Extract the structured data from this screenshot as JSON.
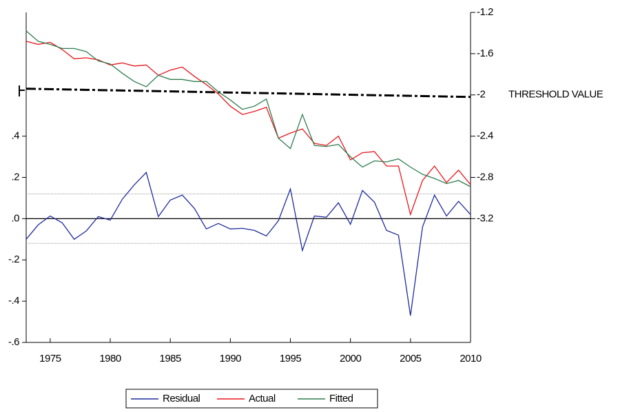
{
  "chart_data": {
    "type": "line",
    "x": [
      1973,
      1974,
      1975,
      1976,
      1977,
      1978,
      1979,
      1980,
      1981,
      1982,
      1983,
      1984,
      1985,
      1986,
      1987,
      1988,
      1989,
      1990,
      1991,
      1992,
      1993,
      1994,
      1995,
      1996,
      1997,
      1998,
      1999,
      2000,
      2001,
      2002,
      2003,
      2004,
      2005,
      2006,
      2007,
      2008,
      2009,
      2010
    ],
    "xlim": [
      1973,
      2010
    ],
    "xticks": [
      1975,
      1980,
      1985,
      1990,
      1995,
      2000,
      2005,
      2010
    ],
    "ylim": [
      -0.6,
      1.0
    ],
    "yticks": [
      {
        "value": -0.6,
        "label": "-.6"
      },
      {
        "value": -0.4,
        "label": "-.4"
      },
      {
        "value": -0.2,
        "label": "-.2"
      },
      {
        "value": 0,
        "label": ".0"
      },
      {
        "value": 0.2,
        "label": ".2"
      },
      {
        "value": 0.4,
        "label": ".4"
      }
    ],
    "y2lim": [
      -4.4,
      -1.2
    ],
    "y2ticks": [
      -3.2,
      -2.8,
      -2.4,
      -2.0,
      -1.6,
      -1.2
    ],
    "zero_line": true,
    "bands": [
      0.12,
      -0.12
    ],
    "threshold": {
      "label": "THRESHOLD VALUE",
      "values": [
        -1.94,
        -2.02
      ]
    },
    "legend": "bottom",
    "series": [
      {
        "name": "Residual",
        "color": "#1f2a9c",
        "axis": "y",
        "values": [
          -0.1,
          -0.03,
          0.013,
          -0.02,
          -0.1,
          -0.06,
          0.01,
          -0.007,
          0.094,
          0.164,
          0.224,
          0.01,
          0.09,
          0.114,
          0.05,
          -0.05,
          -0.023,
          -0.05,
          -0.047,
          -0.057,
          -0.084,
          -0.01,
          0.144,
          -0.154,
          0.013,
          0.007,
          0.077,
          -0.027,
          0.137,
          0.08,
          -0.057,
          -0.08,
          -0.47,
          -0.04,
          0.114,
          0.013,
          0.084,
          0.02
        ]
      },
      {
        "name": "Actual",
        "color": "#e8141b",
        "axis": "y2",
        "values": [
          -1.48,
          -1.51,
          -1.49,
          -1.56,
          -1.65,
          -1.64,
          -1.66,
          -1.71,
          -1.69,
          -1.72,
          -1.71,
          -1.81,
          -1.76,
          -1.73,
          -1.82,
          -1.9,
          -1.99,
          -2.11,
          -2.19,
          -2.16,
          -2.12,
          -2.42,
          -2.37,
          -2.33,
          -2.47,
          -2.49,
          -2.4,
          -2.63,
          -2.56,
          -2.55,
          -2.69,
          -2.69,
          -3.16,
          -2.83,
          -2.69,
          -2.85,
          -2.73,
          -2.87
        ]
      },
      {
        "name": "Fitted",
        "color": "#2e7d4f",
        "axis": "y2",
        "values": [
          -1.38,
          -1.48,
          -1.51,
          -1.55,
          -1.55,
          -1.58,
          -1.67,
          -1.7,
          -1.79,
          -1.87,
          -1.92,
          -1.81,
          -1.85,
          -1.85,
          -1.87,
          -1.87,
          -1.97,
          -2.05,
          -2.14,
          -2.11,
          -2.04,
          -2.42,
          -2.52,
          -2.19,
          -2.49,
          -2.5,
          -2.48,
          -2.6,
          -2.7,
          -2.64,
          -2.65,
          -2.62,
          -2.7,
          -2.77,
          -2.81,
          -2.86,
          -2.83,
          -2.89
        ]
      }
    ]
  }
}
